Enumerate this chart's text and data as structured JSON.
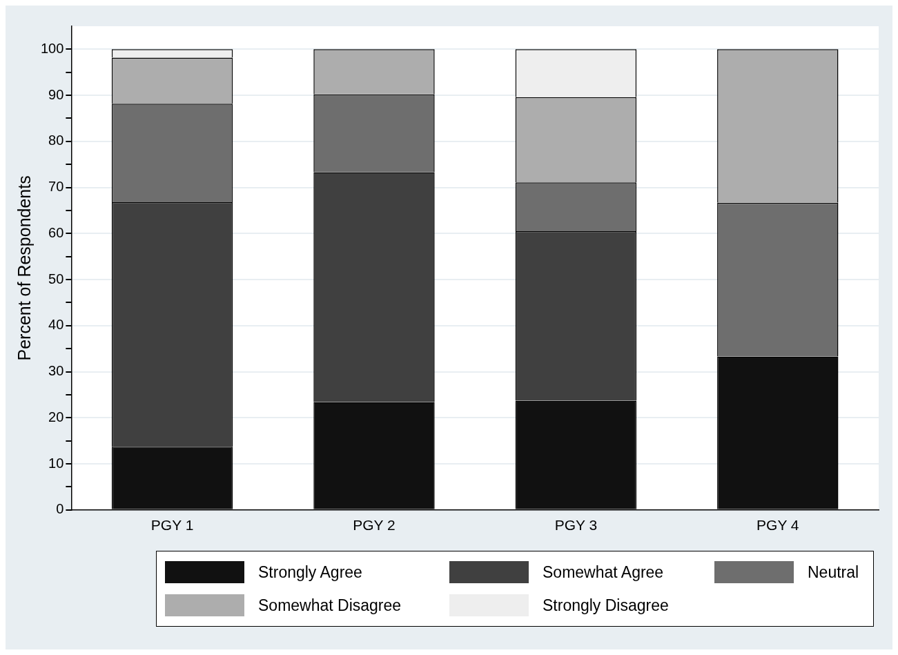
{
  "chart_data": {
    "type": "bar",
    "stacked": true,
    "ylabel": "Percent of Respondents",
    "categories": [
      "PGY 1",
      "PGY 2",
      "PGY 3",
      "PGY 4"
    ],
    "series": [
      {
        "name": "Strongly Agree",
        "color": "#111111",
        "values": [
          13.7,
          23.4,
          23.7,
          33.3
        ]
      },
      {
        "name": "Somewhat Agree",
        "color": "#404040",
        "values": [
          53.1,
          49.9,
          36.8,
          0
        ]
      },
      {
        "name": "Neutral",
        "color": "#6e6e6e",
        "values": [
          21.4,
          16.9,
          10.6,
          33.4
        ]
      },
      {
        "name": "Somewhat Disagree",
        "color": "#adadad",
        "values": [
          10.0,
          9.8,
          18.5,
          33.3
        ]
      },
      {
        "name": "Strongly Disagree",
        "color": "#eeeeee",
        "values": [
          1.8,
          0,
          10.4,
          0
        ]
      }
    ],
    "ylim": [
      0,
      105
    ],
    "yticks": [
      0,
      {
        "value": 5,
        "label": null
      },
      10,
      {
        "value": 15,
        "label": null
      },
      20,
      {
        "value": 25,
        "label": null
      },
      30,
      {
        "value": 35,
        "label": null
      },
      40,
      {
        "value": 45,
        "label": null
      },
      50,
      {
        "value": 55,
        "label": null
      },
      60,
      {
        "value": 65,
        "label": null
      },
      70,
      {
        "value": 75,
        "label": null
      },
      80,
      {
        "value": 85,
        "label": null
      },
      90,
      {
        "value": 95,
        "label": null
      },
      100
    ],
    "grid": "y",
    "legend": "bottom"
  }
}
